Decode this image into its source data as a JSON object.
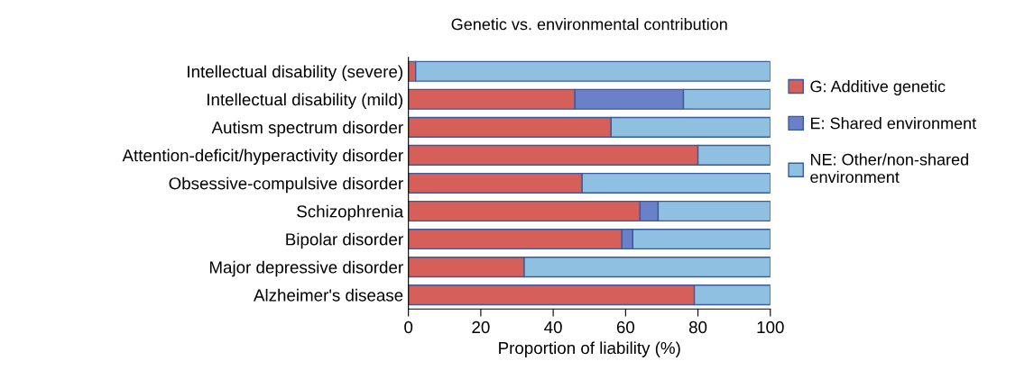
{
  "chart_data": {
    "type": "bar",
    "orientation": "horizontal",
    "stacked": true,
    "title": "Genetic vs. environmental contribution",
    "xlabel": "Proportion of liability (%)",
    "categories": [
      "Intellectual disability (severe)",
      "Intellectual disability (mild)",
      "Autism spectrum disorder",
      "Attention-deficit/hyperactivity disorder",
      "Obsessive-compulsive disorder",
      "Schizophrenia",
      "Bipolar disorder",
      "Major depressive disorder",
      "Alzheimer's disease"
    ],
    "series": [
      {
        "name": "G: Additive genetic",
        "color": "#d65f5a",
        "values": [
          2,
          46,
          56,
          80,
          48,
          64,
          59,
          32,
          79
        ]
      },
      {
        "name": "E: Shared environment",
        "color": "#6a80c8",
        "values": [
          0,
          30,
          0,
          0,
          0,
          5,
          3,
          0,
          0
        ]
      },
      {
        "name": "NE: Other/non-shared\nenvironment",
        "color": "#8fc0e2",
        "values": [
          98,
          24,
          44,
          20,
          52,
          31,
          38,
          68,
          21
        ]
      }
    ],
    "xlim": [
      0,
      100
    ],
    "xticks": [
      0,
      20,
      40,
      60,
      80,
      100
    ],
    "legend": "right",
    "grid": false
  }
}
